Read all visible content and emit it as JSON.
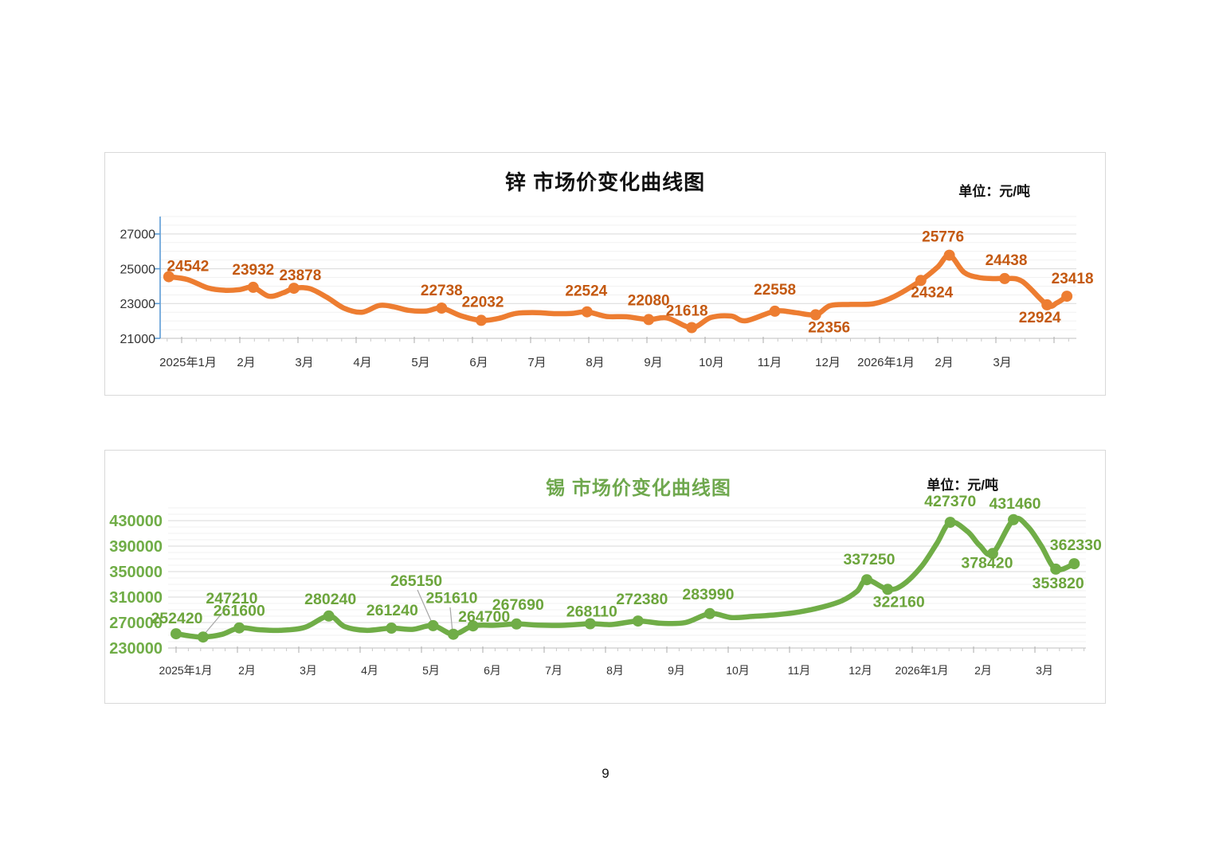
{
  "page": {
    "number": "9"
  },
  "chart_data": [
    {
      "type": "line",
      "id": "zinc",
      "title": "锌 市场价变化曲线图",
      "unit_label": "单位：元/吨",
      "series_name": "锌市场价",
      "line_color": "#ED7D31",
      "marker_color": "#ED7D31",
      "data_label_color": "#C45911",
      "y_axis_line_color": "#5B9BD5",
      "grid": true,
      "legend": "none",
      "ylim": [
        21000,
        28000
      ],
      "y_major_step": 2000,
      "y_minor_step": 500,
      "y_tick_values": [
        27000,
        25000,
        23000,
        21000
      ],
      "y_tick_labels": [
        "27000",
        "25000",
        "23000",
        "21000"
      ],
      "x_tick_labels": [
        "2025年1月",
        "2月",
        "3月",
        "4月",
        "5月",
        "6月",
        "7月",
        "8月",
        "9月",
        "10月",
        "11月",
        "12月",
        "2026年1月",
        "2月",
        "3月"
      ],
      "points": [
        [
          -0.22,
          24542,
          "24542"
        ],
        [
          0.1,
          24380
        ],
        [
          0.45,
          23900
        ],
        [
          0.75,
          23760
        ],
        [
          1.0,
          23800
        ],
        [
          1.23,
          23932,
          "23932"
        ],
        [
          1.5,
          23420
        ],
        [
          1.75,
          23620
        ],
        [
          1.93,
          23878,
          "23878"
        ],
        [
          2.2,
          23860
        ],
        [
          2.5,
          23350
        ],
        [
          2.8,
          22720
        ],
        [
          3.1,
          22500
        ],
        [
          3.4,
          22890
        ],
        [
          3.65,
          22810
        ],
        [
          3.9,
          22610
        ],
        [
          4.2,
          22570
        ],
        [
          4.47,
          22738,
          "22738"
        ],
        [
          4.8,
          22300
        ],
        [
          5.15,
          22032,
          "22032"
        ],
        [
          5.45,
          22150
        ],
        [
          5.75,
          22430
        ],
        [
          6.1,
          22480
        ],
        [
          6.4,
          22420
        ],
        [
          6.7,
          22430
        ],
        [
          6.97,
          22524,
          "22524"
        ],
        [
          7.3,
          22260
        ],
        [
          7.65,
          22240
        ],
        [
          8.03,
          22080,
          "22080"
        ],
        [
          8.35,
          22170
        ],
        [
          8.77,
          21618,
          "21618"
        ],
        [
          9.1,
          22200
        ],
        [
          9.45,
          22280
        ],
        [
          9.7,
          22010
        ],
        [
          10.2,
          22558,
          "22558"
        ],
        [
          10.55,
          22480
        ],
        [
          10.9,
          22356,
          "22356"
        ],
        [
          11.15,
          22880
        ],
        [
          11.5,
          22950
        ],
        [
          11.9,
          22990
        ],
        [
          12.25,
          23400
        ],
        [
          12.71,
          24324,
          "24324"
        ],
        [
          13.0,
          25100
        ],
        [
          13.2,
          25776,
          "25776"
        ],
        [
          13.45,
          24800
        ],
        [
          13.7,
          24500
        ],
        [
          13.95,
          24430
        ],
        [
          14.15,
          24438,
          "24438"
        ],
        [
          14.45,
          24280
        ],
        [
          14.88,
          22924,
          "22924"
        ],
        [
          15.05,
          23040
        ],
        [
          15.22,
          23418,
          "23418"
        ]
      ]
    },
    {
      "type": "line",
      "id": "tin",
      "title": "锡 市场价变化曲线图",
      "unit_label": "单位：元/吨",
      "series_name": "锡市场价",
      "line_color": "#70AD47",
      "marker_color": "#70AD47",
      "data_label_color": "#6CA53C",
      "y_label_color": "#70AD47",
      "grid": true,
      "legend": "none",
      "ylim": [
        230000,
        450000
      ],
      "y_major_step": 40000,
      "y_minor_step": 10000,
      "y_tick_values": [
        430000,
        390000,
        350000,
        310000,
        270000,
        230000
      ],
      "y_tick_labels": [
        "430000",
        "390000",
        "350000",
        "310000",
        "270000",
        "230000"
      ],
      "x_tick_labels": [
        "2025年1月",
        "2月",
        "3月",
        "4月",
        "5月",
        "6月",
        "7月",
        "8月",
        "9月",
        "10月",
        "11月",
        "12月",
        "2026年1月",
        "2月",
        "3月"
      ],
      "points": [
        [
          0,
          252420,
          "252420"
        ],
        [
          0.22,
          249000
        ],
        [
          0.44,
          247210,
          "247210"
        ],
        [
          0.75,
          251500
        ],
        [
          1.03,
          261600,
          "261600"
        ],
        [
          1.35,
          258800
        ],
        [
          1.7,
          257800
        ],
        [
          2.1,
          262500
        ],
        [
          2.49,
          280240,
          "280240"
        ],
        [
          2.75,
          263500
        ],
        [
          3.1,
          257800
        ],
        [
          3.51,
          261240,
          "261240"
        ],
        [
          3.85,
          259300
        ],
        [
          4.19,
          265150,
          "265150"
        ],
        [
          4.52,
          251610,
          "251610"
        ],
        [
          4.84,
          264700,
          "264700"
        ],
        [
          5.2,
          265800
        ],
        [
          5.55,
          267690,
          "267690"
        ],
        [
          5.9,
          266000
        ],
        [
          6.3,
          265600
        ],
        [
          6.75,
          268110,
          "268110"
        ],
        [
          7.1,
          266900
        ],
        [
          7.53,
          272380,
          "272380"
        ],
        [
          7.9,
          268900
        ],
        [
          8.3,
          269900
        ],
        [
          8.7,
          283990,
          "283990"
        ],
        [
          9.05,
          277900
        ],
        [
          9.4,
          279600
        ],
        [
          9.8,
          282400
        ],
        [
          10.15,
          286500
        ],
        [
          10.5,
          293500
        ],
        [
          10.85,
          304000
        ],
        [
          11.1,
          319000
        ],
        [
          11.26,
          337250,
          "337250"
        ],
        [
          11.6,
          322160,
          "322160"
        ],
        [
          11.85,
          329500
        ],
        [
          12.15,
          358000
        ],
        [
          12.4,
          394000
        ],
        [
          12.62,
          427370,
          "427370"
        ],
        [
          12.9,
          413000
        ],
        [
          13.1,
          391000
        ],
        [
          13.31,
          378420,
          "378420"
        ],
        [
          13.65,
          431460,
          "431460"
        ],
        [
          13.88,
          421000
        ],
        [
          14.1,
          391000
        ],
        [
          14.34,
          353820,
          "353820"
        ],
        [
          14.64,
          362330,
          "362330"
        ]
      ]
    }
  ]
}
